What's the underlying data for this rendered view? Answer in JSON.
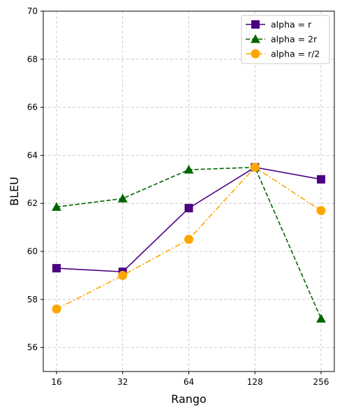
{
  "chart_data": {
    "type": "line",
    "title": "",
    "xlabel": "Rango",
    "ylabel": "BLEU",
    "categories": [
      "16",
      "32",
      "64",
      "128",
      "256"
    ],
    "ylim": [
      55,
      70
    ],
    "yticks": [
      56,
      58,
      60,
      62,
      64,
      66,
      68,
      70
    ],
    "grid": true,
    "legend_position": "top-right",
    "series": [
      {
        "name": "alpha = r",
        "values": [
          59.3,
          59.15,
          61.8,
          63.5,
          63.0
        ],
        "color": "#4b0082",
        "marker": "square",
        "line_style": "solid"
      },
      {
        "name": "alpha = 2r",
        "values": [
          61.85,
          62.2,
          63.4,
          63.5,
          57.2
        ],
        "color": "#006400",
        "marker": "triangle",
        "line_style": "dashed"
      },
      {
        "name": "alpha = r/2",
        "values": [
          57.6,
          59.0,
          60.5,
          63.5,
          61.7
        ],
        "color": "#ffa500",
        "marker": "circle",
        "line_style": "dashdot"
      }
    ]
  }
}
